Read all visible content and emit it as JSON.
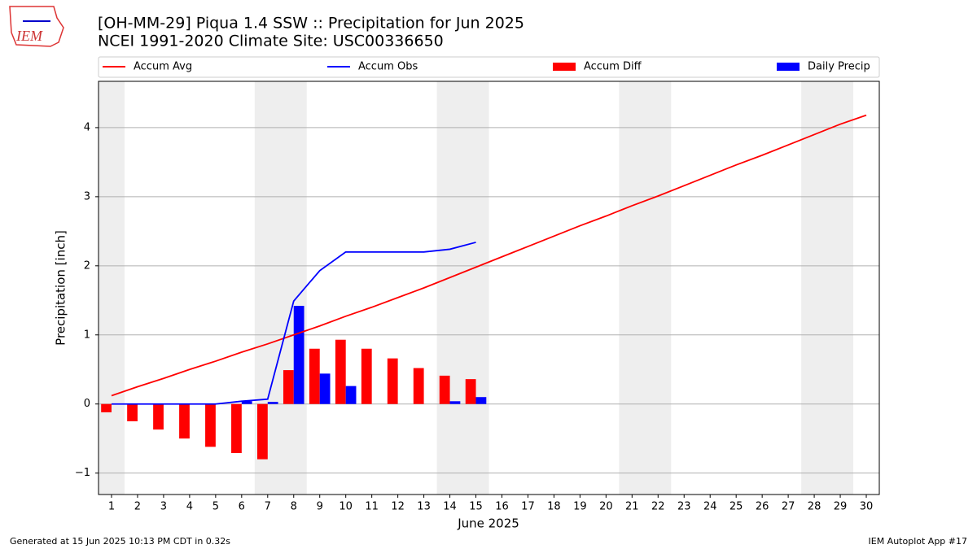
{
  "logo_text": "IEM",
  "footer_left": "Generated at 15 Jun 2025 10:13 PM CDT in 0.32s",
  "footer_right": "IEM Autoplot App #17",
  "chart_data": {
    "type": "bar-line",
    "title": "[OH-MM-29] Piqua 1.4 SSW :: Precipitation for Jun 2025",
    "subtitle": "NCEI 1991-2020 Climate Site: USC00336650",
    "x_label": "June 2025",
    "y_label": "Precipitation [inch]",
    "x": [
      1,
      2,
      3,
      4,
      5,
      6,
      7,
      8,
      9,
      10,
      11,
      12,
      13,
      14,
      15,
      16,
      17,
      18,
      19,
      20,
      21,
      22,
      23,
      24,
      25,
      26,
      27,
      28,
      29,
      30
    ],
    "xlim": [
      0.5,
      30.5
    ],
    "xticks": [
      1,
      2,
      3,
      4,
      5,
      6,
      7,
      8,
      9,
      10,
      11,
      12,
      13,
      14,
      15,
      16,
      17,
      18,
      19,
      20,
      21,
      22,
      23,
      24,
      25,
      26,
      27,
      28,
      29,
      30
    ],
    "ylim": [
      -1.31,
      4.67
    ],
    "yticks": [
      {
        "value": -1,
        "label": "−1"
      },
      0,
      1,
      2,
      3,
      4
    ],
    "grid": true,
    "shaded_x": [
      [
        0.5,
        1.5
      ],
      [
        6.5,
        8.5
      ],
      [
        13.5,
        15.5
      ],
      [
        20.5,
        22.5
      ],
      [
        27.5,
        29.5
      ]
    ],
    "shade_color": "#eeeeee",
    "series": [
      {
        "name": "Accum Avg",
        "kind": "line",
        "color": "#ff0000",
        "values": [
          0.12,
          0.25,
          0.37,
          0.5,
          0.62,
          0.75,
          0.87,
          1.0,
          1.13,
          1.27,
          1.4,
          1.54,
          1.68,
          1.83,
          1.98,
          2.13,
          2.28,
          2.43,
          2.58,
          2.72,
          2.87,
          3.01,
          3.16,
          3.31,
          3.46,
          3.6,
          3.75,
          3.9,
          4.05,
          4.18
        ]
      },
      {
        "name": "Accum Obs",
        "kind": "line",
        "color": "#0000ff",
        "values": [
          0,
          0,
          0,
          0,
          0,
          0.04,
          0.07,
          1.49,
          1.93,
          2.2,
          2.2,
          2.2,
          2.2,
          2.24,
          2.34,
          null,
          null,
          null,
          null,
          null,
          null,
          null,
          null,
          null,
          null,
          null,
          null,
          null,
          null,
          null
        ]
      },
      {
        "name": "Accum Diff",
        "kind": "bar",
        "offset": -0.2,
        "color": "#ff0000",
        "values": [
          -0.12,
          -0.25,
          -0.37,
          -0.5,
          -0.62,
          -0.71,
          -0.8,
          0.49,
          0.8,
          0.93,
          0.8,
          0.66,
          0.52,
          0.41,
          0.36,
          null,
          null,
          null,
          null,
          null,
          null,
          null,
          null,
          null,
          null,
          null,
          null,
          null,
          null,
          null
        ]
      },
      {
        "name": "Daily Precip",
        "kind": "bar",
        "offset": 0.2,
        "color": "#0000ff",
        "values": [
          0,
          0,
          0,
          0,
          0,
          0.04,
          0.03,
          1.42,
          0.44,
          0.26,
          0,
          0,
          0,
          0.04,
          0.1,
          null,
          null,
          null,
          null,
          null,
          null,
          null,
          null,
          null,
          null,
          null,
          null,
          null,
          null,
          null
        ]
      }
    ]
  }
}
